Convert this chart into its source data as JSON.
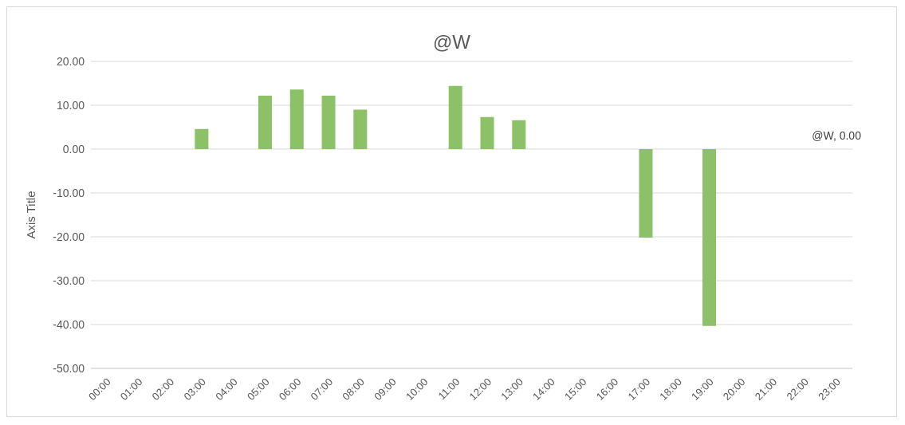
{
  "chart_data": {
    "type": "bar",
    "title": "@W",
    "ylabel": "Axis Title",
    "categories": [
      "00:00",
      "01:00",
      "02:00",
      "03:00",
      "04:00",
      "05:00",
      "06:00",
      "07:00",
      "08:00",
      "09:00",
      "10:00",
      "11:00",
      "12:00",
      "13:00",
      "14:00",
      "15:00",
      "16:00",
      "17:00",
      "18:00",
      "19:00",
      "20:00",
      "21:00",
      "22:00",
      "23:00"
    ],
    "values": [
      0,
      0,
      0,
      4.6,
      0,
      12.2,
      13.6,
      12.2,
      9.0,
      0,
      0,
      14.4,
      7.3,
      6.6,
      0,
      0,
      0,
      -20.2,
      0,
      -40.3,
      0,
      0,
      0,
      0
    ],
    "color": "#8cc168",
    "ylim": [
      -50,
      20
    ],
    "yticks": [
      {
        "value": 20,
        "label": "20.00"
      },
      {
        "value": 10,
        "label": "10.00"
      },
      {
        "value": 0,
        "label": "0.00"
      },
      {
        "value": -10,
        "label": "-10.00"
      },
      {
        "value": -20,
        "label": "-20.00"
      },
      {
        "value": -30,
        "label": "-30.00"
      },
      {
        "value": -40,
        "label": "-40.00"
      },
      {
        "value": -50,
        "label": "-50.00"
      }
    ],
    "grid": "y",
    "annotations": [
      {
        "text": "@W, 0.00",
        "x": "23:00",
        "y": 0
      }
    ]
  }
}
